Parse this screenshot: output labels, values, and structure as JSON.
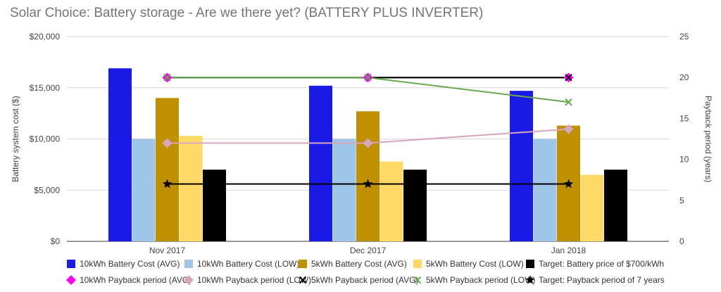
{
  "chart_data": {
    "type": "bar",
    "title": "Solar Choice: Battery storage - Are we there yet? (BATTERY PLUS INVERTER)",
    "xlabel": "",
    "ylabel": "Battery system cost ($)",
    "y2label": "Payback period (years)",
    "categories": [
      "Nov 2017",
      "Dec 2017",
      "Jan 2018"
    ],
    "ylim": [
      0,
      20000
    ],
    "y2lim": [
      0,
      25
    ],
    "yticks": [
      "$0",
      "$5,000",
      "$10,000",
      "$15,000",
      "$20,000"
    ],
    "y2ticks": [
      "0",
      "5",
      "10",
      "15",
      "20",
      "25"
    ],
    "grid": true,
    "legend_position": "bottom",
    "bar_series": [
      {
        "name": "10kWh Battery Cost (AVG)",
        "color": "#1a1ae6",
        "values": [
          16900,
          15200,
          14700
        ]
      },
      {
        "name": "10kWh Battery Cost (LOW)",
        "color": "#9fc5e8",
        "values": [
          10000,
          10000,
          10000
        ]
      },
      {
        "name": "5kWh Battery Cost (AVG)",
        "color": "#bf9000",
        "values": [
          14000,
          12700,
          11300
        ]
      },
      {
        "name": "5kWh Battery Cost (LOW)",
        "color": "#ffd966",
        "values": [
          10300,
          7800,
          6500
        ]
      },
      {
        "name": "Target: Battery price of $700/kWh",
        "color": "#000000",
        "values": [
          7000,
          7000,
          7000
        ]
      }
    ],
    "line_series": [
      {
        "name": "10kWh Payback period (AVG)",
        "color": "#ff00ff",
        "line_color": "#666666",
        "marker": "diamond",
        "values": [
          20,
          20,
          20
        ]
      },
      {
        "name": "10kWh Payback period (LOW)",
        "color": "#d5a6bd",
        "line_color": "#d5a6bd",
        "marker": "diamond",
        "values": [
          12,
          12,
          13.7
        ]
      },
      {
        "name": "5kWh Payback period (AVG)",
        "color": "#000000",
        "line_color": "#000000",
        "marker": "x",
        "values": [
          20,
          20,
          20
        ]
      },
      {
        "name": "5kWh Payback period (LOW)",
        "color": "#6aa84f",
        "line_color": "#6aa84f",
        "marker": "x",
        "values": [
          20,
          20,
          17
        ]
      },
      {
        "name": "Target: Payback period of 7 years",
        "color": "#000000",
        "line_color": "#000000",
        "marker": "star",
        "values": [
          7,
          7,
          7
        ]
      }
    ]
  }
}
